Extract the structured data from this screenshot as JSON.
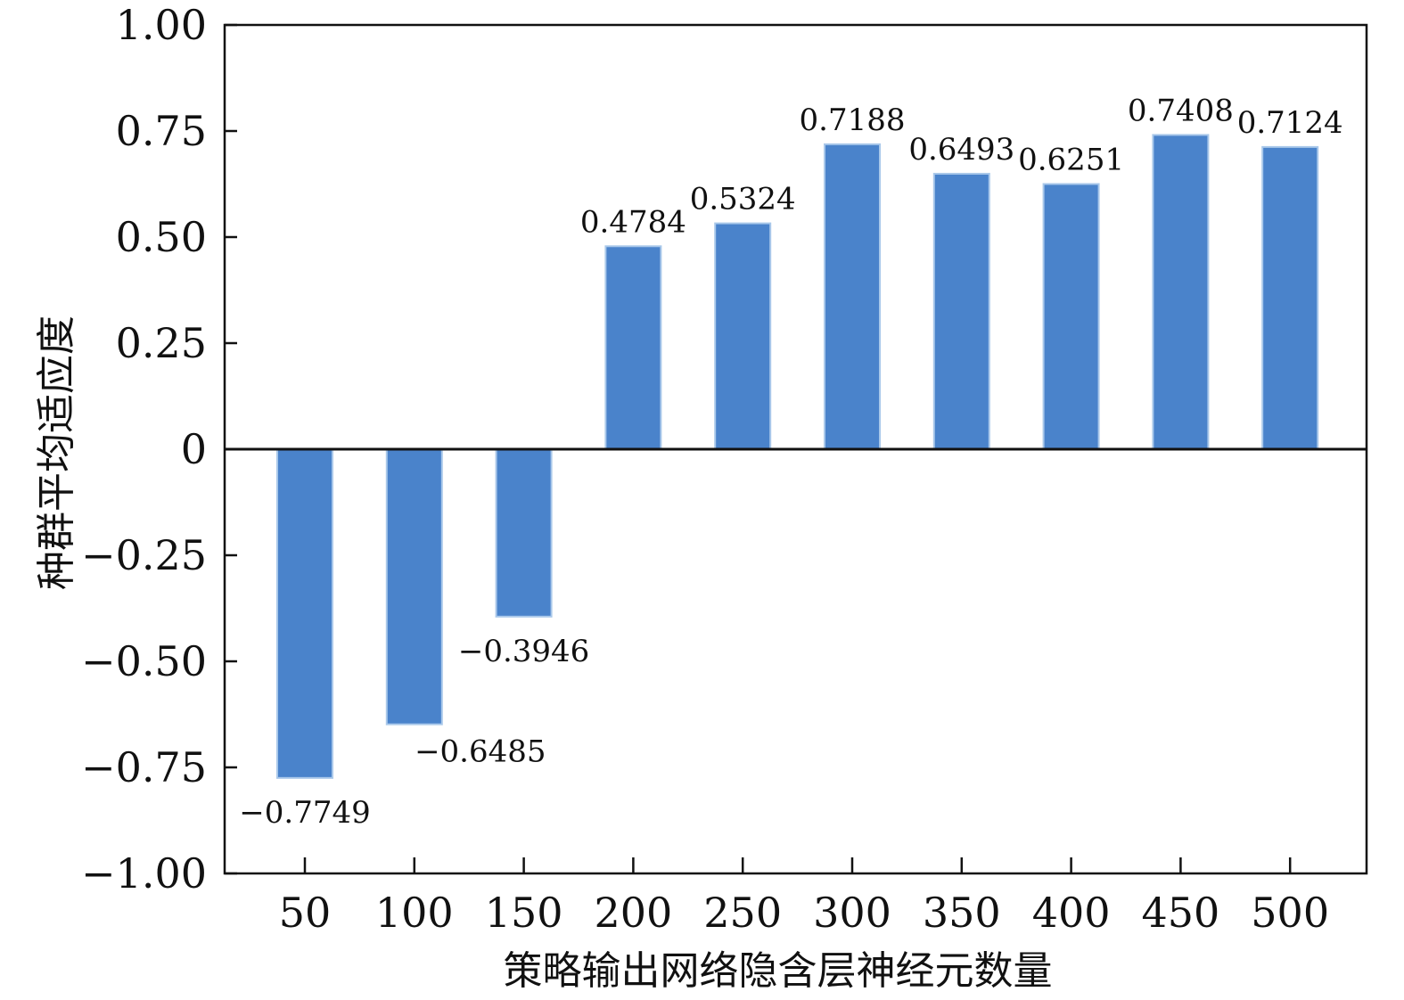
{
  "chart_data": {
    "type": "bar",
    "xlabel": "策略输出网络隐含层神经元数量",
    "ylabel": "种群平均适应度",
    "categories": [
      "50",
      "100",
      "150",
      "200",
      "250",
      "300",
      "350",
      "400",
      "450",
      "500"
    ],
    "values": [
      -0.7749,
      -0.6485,
      -0.3946,
      0.4784,
      0.5324,
      0.7188,
      0.6493,
      0.6251,
      0.7408,
      0.7124
    ],
    "data_labels": [
      "−0.7749",
      "−0.6485",
      "−0.3946",
      "0.4784",
      "0.5324",
      "0.7188",
      "0.6493",
      "0.6251",
      "0.7408",
      "0.7124"
    ],
    "ylim": [
      -1.0,
      1.0
    ],
    "yticks": [
      1.0,
      0.75,
      0.5,
      0.25,
      0,
      -0.25,
      -0.5,
      -0.75,
      -1.0
    ],
    "ytick_labels": [
      "1.00",
      "0.75",
      "0.50",
      "0.25",
      "0",
      "−0.25",
      "−0.50",
      "−0.75",
      "−1.00"
    ],
    "grid": false,
    "bar_color": "#4a83cb",
    "bar_edge_color": "#a9c8ea",
    "axis_color": "#111111"
  }
}
